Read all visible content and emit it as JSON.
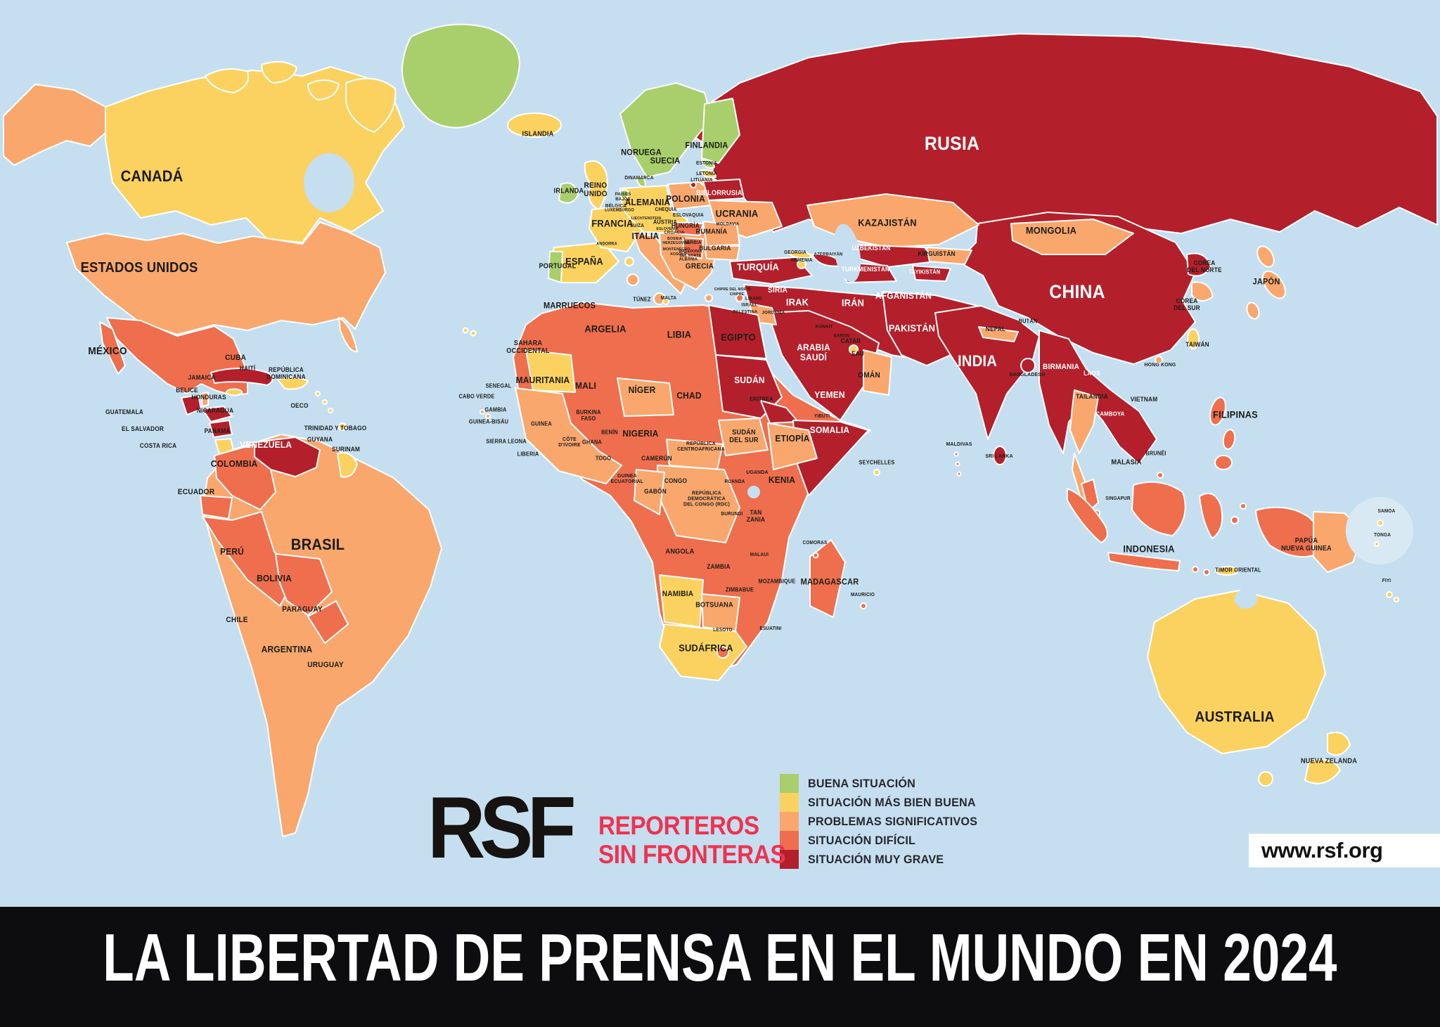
{
  "banner": {
    "title": "LA LIBERTAD DE PRENSA EN EL MUNDO EN 2024"
  },
  "logo": {
    "acronym": "RSF",
    "line1": "REPORTEROS",
    "line2": "SIN FRONTERAS",
    "accent_color": "#ee3350"
  },
  "website": {
    "url": "www.rsf.org"
  },
  "legend": {
    "items": [
      {
        "key": "good",
        "label": "BUENA SITUACIÓN"
      },
      {
        "key": "fair",
        "label": "SITUACIÓN MÁS BIEN BUENA"
      },
      {
        "key": "prob",
        "label": "PROBLEMAS SIGNIFICATIVOS"
      },
      {
        "key": "diff",
        "label": "SITUACIÓN DIFÍCIL"
      },
      {
        "key": "grave",
        "label": "SITUACIÓN MUY GRAVE"
      }
    ]
  },
  "map": {
    "category_colors": {
      "good": "#a8cf6b",
      "fair": "#fbd25f",
      "prob": "#f9a76d",
      "diff": "#ef6e4d",
      "grave": "#b3202b",
      "ocean": "#c5dff0",
      "inset": "#d8e9f4"
    },
    "border_color": "#ffffff",
    "label_colors": {
      "d": "#1c1c1a",
      "w": "#ffffff"
    },
    "labels": [
      [
        "CANADÁ",
        10.55,
        19.49,
        22,
        "d"
      ],
      [
        "ESTADOS UNIDOS",
        9.67,
        29.51,
        20,
        "d"
      ],
      [
        "RUSIA",
        66.1,
        15.9,
        27,
        "w"
      ],
      [
        "CHINA",
        74.8,
        32.28,
        27,
        "w"
      ],
      [
        "INDIA",
        67.87,
        39.83,
        22,
        "w"
      ],
      [
        "BRASIL",
        22.07,
        60.09,
        22,
        "d"
      ],
      [
        "AUSTRALIA",
        85.74,
        79.04,
        21,
        "d"
      ],
      [
        "MÉXICO",
        7.47,
        38.75,
        15,
        "d"
      ],
      [
        "KAZAJISTÁN",
        61.62,
        24.58,
        14,
        "d"
      ],
      [
        "MONGOLIA",
        73.0,
        25.4,
        14,
        "d"
      ],
      [
        "ARGELIA",
        42.04,
        36.29,
        14,
        "d"
      ],
      [
        "LIBIA",
        47.17,
        36.9,
        14,
        "d"
      ],
      [
        "EGIPTO",
        51.27,
        37.21,
        14,
        "d"
      ],
      [
        "SUDÁN",
        52.05,
        41.91,
        13,
        "w"
      ],
      [
        "MALI",
        40.67,
        42.53,
        13,
        "d"
      ],
      [
        "NÍGER",
        44.58,
        42.99,
        13,
        "d"
      ],
      [
        "CHAD",
        47.85,
        43.68,
        13,
        "d"
      ],
      [
        "NIGERIA",
        44.48,
        47.84,
        13,
        "d"
      ],
      [
        "ETIOPÍA",
        55.03,
        48.38,
        13,
        "d"
      ],
      [
        "KENIA",
        54.3,
        52.93,
        13,
        "d"
      ],
      [
        "SOMALIA",
        57.62,
        47.46,
        13,
        "w"
      ],
      [
        "IRÁN",
        59.23,
        33.44,
        14,
        "w"
      ],
      [
        "IRAK",
        55.37,
        33.36,
        14,
        "w"
      ],
      [
        "AFGANISTÁN",
        62.74,
        32.67,
        13,
        "w"
      ],
      [
        "PAKISTÁN",
        63.33,
        36.21,
        14,
        "w"
      ],
      [
        "TURQUÍA",
        52.64,
        29.43,
        14,
        "w"
      ],
      [
        "SIRIA",
        54.0,
        32.05,
        11,
        "w"
      ],
      [
        "UCRANIA",
        51.17,
        23.57,
        14,
        "d"
      ],
      [
        "FRANCIA",
        42.53,
        24.65,
        14,
        "d"
      ],
      [
        "ALEMANIA",
        44.97,
        22.34,
        13,
        "d"
      ],
      [
        "POLONIA",
        47.61,
        21.96,
        13,
        "d"
      ],
      [
        "ESPAÑA",
        40.58,
        28.81,
        14,
        "d"
      ],
      [
        "ITALIA",
        44.82,
        26.04,
        13,
        "d"
      ],
      [
        "FINLANDIA",
        49.07,
        16.02,
        12,
        "d"
      ],
      [
        "NORUEGA",
        44.53,
        16.79,
        12,
        "d"
      ],
      [
        "SUECIA",
        46.19,
        17.72,
        12,
        "d"
      ],
      [
        "COLOMBIA",
        16.26,
        51.16,
        13,
        "d"
      ],
      [
        "PERÚ",
        16.11,
        60.86,
        13,
        "d"
      ],
      [
        "BOLIVIA",
        19.04,
        63.79,
        13,
        "d"
      ],
      [
        "ARGENTINA",
        19.92,
        71.65,
        13,
        "d"
      ],
      [
        "INDONESIA",
        79.79,
        60.55,
        14,
        "d"
      ],
      [
        "FILIPINAS",
        85.79,
        45.76,
        14,
        "d"
      ],
      [
        "MADAGASCAR",
        57.62,
        64.18,
        12,
        "d"
      ],
      [
        "SUDÁFRICA",
        49.02,
        71.49,
        14,
        "d"
      ],
      [
        "BIRMANIA",
        73.68,
        40.45,
        11,
        "w"
      ],
      [
        "VENEZUELA",
        18.46,
        49.08,
        13,
        "w"
      ],
      [
        "MAURITANIA",
        37.7,
        41.91,
        13,
        "d"
      ],
      [
        "MARRUECOS",
        39.55,
        33.74,
        12,
        "d"
      ],
      [
        "JAPÓN",
        87.94,
        31.05,
        12,
        "d"
      ],
      [
        "YEMEN",
        57.62,
        43.53,
        13,
        "w"
      ],
      [
        "ARABIA\nSAUDÍ",
        56.49,
        38.91,
        13,
        "w"
      ],
      [
        "ISLANDIA",
        37.35,
        14.79,
        10,
        "d"
      ],
      [
        "IRLANDA",
        39.5,
        21.11,
        10,
        "d"
      ],
      [
        "REINO\nUNIDO",
        41.36,
        20.96,
        11,
        "d"
      ],
      [
        "PORTUGAL",
        38.72,
        29.35,
        10,
        "d"
      ],
      [
        "CUBA",
        16.36,
        39.45,
        11,
        "d"
      ],
      [
        "JAMAICA",
        14.01,
        41.68,
        9,
        "d"
      ],
      [
        "HAITÍ",
        17.19,
        40.68,
        9,
        "d"
      ],
      [
        "REPÚBLICA\nDOMINICANA",
        19.87,
        41.22,
        9,
        "d"
      ],
      [
        "BELICE",
        12.99,
        43.07,
        9,
        "d"
      ],
      [
        "HONDURAS",
        14.5,
        43.91,
        9,
        "d"
      ],
      [
        "NICARAGUA",
        14.94,
        45.38,
        9,
        "d"
      ],
      [
        "GUATEMALA",
        8.64,
        45.53,
        9,
        "d"
      ],
      [
        "EL SALVADOR",
        9.91,
        47.38,
        9,
        "d"
      ],
      [
        "COSTA RICA",
        10.99,
        49.23,
        9,
        "d"
      ],
      [
        "PANAMÁ",
        15.09,
        47.61,
        9,
        "d"
      ],
      [
        "OECO",
        20.8,
        44.84,
        9,
        "d"
      ],
      [
        "TRINIDAD Y TOBAGO",
        23.29,
        47.3,
        9,
        "d"
      ],
      [
        "GUYANA",
        22.22,
        48.54,
        9,
        "d"
      ],
      [
        "SURINAM",
        24.02,
        49.61,
        9,
        "d"
      ],
      [
        "ECUADOR",
        13.62,
        54.24,
        11,
        "d"
      ],
      [
        "PARAGUAY",
        21.0,
        67.18,
        11,
        "d"
      ],
      [
        "CHILE",
        16.46,
        68.41,
        11,
        "d"
      ],
      [
        "URUGUAY",
        22.61,
        73.34,
        11,
        "d"
      ],
      [
        "DINAMARCA",
        44.38,
        19.72,
        7,
        "d"
      ],
      [
        "ESTONIA",
        49.07,
        18.1,
        7,
        "d"
      ],
      [
        "LETONIA",
        49.07,
        19.26,
        7,
        "d"
      ],
      [
        "LITUANIA",
        48.73,
        19.95,
        7,
        "d"
      ],
      [
        "BIELORRUSIA",
        49.95,
        21.34,
        10,
        "w"
      ],
      [
        "PAÍSES\nBAJOS",
        43.26,
        21.73,
        6.5,
        "d"
      ],
      [
        "BÉLGICA",
        42.77,
        22.8,
        7,
        "d"
      ],
      [
        "LUXEMBURGO",
        43.02,
        23.27,
        6,
        "d"
      ],
      [
        "CHEQUIA",
        46.24,
        23.19,
        7,
        "d"
      ],
      [
        "ESLOVAQUIA",
        47.8,
        23.81,
        7,
        "d"
      ],
      [
        "LIECHTENSTEIN",
        44.87,
        24.11,
        5.5,
        "d"
      ],
      [
        "SUIZA",
        44.24,
        24.96,
        7,
        "d"
      ],
      [
        "AUSTRIA",
        46.19,
        24.58,
        8,
        "d"
      ],
      [
        "HUNGRÍA",
        47.61,
        24.96,
        9,
        "d"
      ],
      [
        "MOLDAVIA",
        50.54,
        24.73,
        6.5,
        "d"
      ],
      [
        "ESLOVENIA",
        46.33,
        25.27,
        5.5,
        "d"
      ],
      [
        "CROACIA",
        46.83,
        25.65,
        6.5,
        "d"
      ],
      [
        "RUMANÍA",
        49.41,
        25.58,
        10,
        "d"
      ],
      [
        "BOSNIA Y\nHERZEGOVINA",
        46.97,
        26.58,
        5.5,
        "d"
      ],
      [
        "SERBIA",
        48.1,
        26.81,
        7,
        "d"
      ],
      [
        "MONTENEGRO",
        46.97,
        27.5,
        5.5,
        "d"
      ],
      [
        "KOSOVO",
        47.12,
        28.04,
        5.5,
        "d"
      ],
      [
        "MACEDONIA\nDEL NORTE",
        47.95,
        27.97,
        5.5,
        "d"
      ],
      [
        "ALBANIA",
        47.8,
        28.66,
        6,
        "d"
      ],
      [
        "BULGARIA",
        49.66,
        27.43,
        9,
        "d"
      ],
      [
        "GRECIA",
        48.58,
        29.35,
        11,
        "d"
      ],
      [
        "ANDORRA",
        42.14,
        26.96,
        6,
        "d"
      ],
      [
        "MALTA",
        46.44,
        32.97,
        7,
        "d"
      ],
      [
        "TÚNEZ",
        44.58,
        33.13,
        8,
        "d"
      ],
      [
        "GEORGIA",
        55.22,
        27.89,
        7,
        "d"
      ],
      [
        "ARMENIA",
        55.66,
        28.74,
        7,
        "d"
      ],
      [
        "AZERBAIYÁN",
        57.52,
        28.04,
        6.5,
        "d"
      ],
      [
        "CHIPRE DEL NORTE",
        50.88,
        31.9,
        5.5,
        "d"
      ],
      [
        "CHIPRE",
        51.17,
        32.51,
        5.5,
        "d"
      ],
      [
        "LÍBANO",
        52.34,
        32.97,
        6.5,
        "d"
      ],
      [
        "ISRAEL",
        52.05,
        33.67,
        6.5,
        "d"
      ],
      [
        "PALESTINA",
        51.76,
        34.44,
        6.5,
        "d"
      ],
      [
        "JORDANIA",
        53.71,
        34.51,
        6.5,
        "d"
      ],
      [
        "KUWAIT",
        57.23,
        36.06,
        6.5,
        "d"
      ],
      [
        "BAREIN",
        58.45,
        37.13,
        6,
        "d"
      ],
      [
        "CATAR",
        59.08,
        37.67,
        9,
        "d"
      ],
      [
        "EAU",
        59.57,
        39.06,
        9,
        "d"
      ],
      [
        "OMÁN",
        60.35,
        41.37,
        11,
        "d"
      ],
      [
        "SAHARA\nOCCIDENTAL",
        36.67,
        38.29,
        10,
        "d"
      ],
      [
        "SENEGAL",
        34.62,
        42.6,
        8,
        "d"
      ],
      [
        "CABO VERDE",
        33.11,
        43.76,
        8,
        "d"
      ],
      [
        "GAMBIA",
        34.42,
        45.3,
        8,
        "d"
      ],
      [
        "GUINEA-BISÁU",
        33.94,
        46.61,
        8,
        "d"
      ],
      [
        "GUINEA",
        37.6,
        46.84,
        8,
        "d"
      ],
      [
        "SIERRA LEONA",
        35.16,
        48.77,
        8,
        "d"
      ],
      [
        "LIBERIA",
        36.67,
        50.15,
        8,
        "d"
      ],
      [
        "CÔTE\nD'IVOIRE",
        39.55,
        48.77,
        7.5,
        "d"
      ],
      [
        "BURKINA\nFASO",
        40.87,
        45.92,
        8,
        "d"
      ],
      [
        "GHANA",
        41.11,
        48.84,
        8,
        "d"
      ],
      [
        "BENÍN",
        42.33,
        47.77,
        8,
        "d"
      ],
      [
        "TOGO",
        41.89,
        50.62,
        8,
        "d"
      ],
      [
        "CAMERÚN",
        45.61,
        50.62,
        9,
        "d"
      ],
      [
        "GUINEA\nECUATORIAL",
        43.55,
        52.77,
        7.5,
        "d"
      ],
      [
        "GABÓN",
        45.51,
        54.24,
        9,
        "d"
      ],
      [
        "CONGO",
        46.92,
        53.08,
        9,
        "d"
      ],
      [
        "REPÚBLICA\nCENTROAFRICANA",
        48.68,
        49.23,
        7.5,
        "d"
      ],
      [
        "REPÚBLICA\nDEMOCRÁTICA\nDEL CONGO (RDC)",
        49.07,
        55.01,
        7.5,
        "d"
      ],
      [
        "RUANDA",
        51.03,
        53.16,
        7,
        "d"
      ],
      [
        "BURUNDI",
        50.83,
        56.78,
        7,
        "d"
      ],
      [
        "UGANDA",
        52.59,
        52.08,
        7.5,
        "d"
      ],
      [
        "TAN\nZANIA",
        52.49,
        57.01,
        9,
        "d"
      ],
      [
        "ERITREA",
        52.88,
        44.07,
        8,
        "d"
      ],
      [
        "YIBUTI",
        57.08,
        45.99,
        7,
        "d"
      ],
      [
        "SUDÁN\nDEL SUR",
        51.66,
        48.15,
        10,
        "d"
      ],
      [
        "SEYCHELLES",
        60.89,
        51.08,
        8,
        "d"
      ],
      [
        "COMORAS",
        56.59,
        59.94,
        7,
        "d"
      ],
      [
        "MAURICIO",
        59.91,
        65.64,
        7,
        "d"
      ],
      [
        "MOZAMBIQUE",
        53.96,
        64.18,
        8,
        "d"
      ],
      [
        "MALAUI",
        52.73,
        61.25,
        7,
        "d"
      ],
      [
        "ZAMBIA",
        49.9,
        62.56,
        9,
        "d"
      ],
      [
        "ANGOLA",
        47.22,
        60.86,
        10,
        "d"
      ],
      [
        "ZIMBABUE",
        51.37,
        65.1,
        8,
        "d"
      ],
      [
        "NAMIBIA",
        47.07,
        65.49,
        11,
        "d"
      ],
      [
        "BOTSUANA",
        49.61,
        66.72,
        10,
        "d"
      ],
      [
        "LESOTO",
        50.2,
        69.57,
        7,
        "d"
      ],
      [
        "ESUATINI",
        53.52,
        69.41,
        7,
        "d"
      ],
      [
        "NEPAL",
        69.14,
        36.36,
        9,
        "d"
      ],
      [
        "BUTÁN",
        71.39,
        35.52,
        8,
        "d"
      ],
      [
        "BANGLADESH",
        71.34,
        41.29,
        7.5,
        "d"
      ],
      [
        "LAOS",
        75.83,
        41.22,
        9,
        "w"
      ],
      [
        "TAILANDIA",
        75.83,
        43.76,
        9,
        "d"
      ],
      [
        "CAMBOYA",
        77.1,
        45.69,
        8.5,
        "w"
      ],
      [
        "VIETNAM",
        79.44,
        44.14,
        9,
        "d"
      ],
      [
        "HONG KONG",
        80.57,
        40.22,
        7.5,
        "d"
      ],
      [
        "TAIWÁN",
        83.15,
        38.06,
        9,
        "d"
      ],
      [
        "COREA\nDEL NORTE",
        83.64,
        29.43,
        9,
        "d"
      ],
      [
        "COREA\nDEL SUR",
        82.42,
        33.67,
        9,
        "d"
      ],
      [
        "MALASIA",
        78.22,
        51.0,
        10,
        "d"
      ],
      [
        "BRUNÉI",
        80.27,
        50.08,
        8,
        "d"
      ],
      [
        "SINGAPUR",
        77.64,
        55.01,
        7,
        "d"
      ],
      [
        "TIMOR ORIENTAL",
        85.99,
        62.94,
        8,
        "d"
      ],
      [
        "PAPÚA\nNUEVA GUINEA",
        90.72,
        60.09,
        10,
        "d"
      ],
      [
        "SAMOA",
        96.29,
        56.47,
        7,
        "d"
      ],
      [
        "TONGA",
        96.0,
        59.09,
        7,
        "d"
      ],
      [
        "FIYI",
        96.29,
        64.1,
        7,
        "d"
      ],
      [
        "NUEVA ZELANDA",
        92.29,
        83.97,
        10,
        "d"
      ],
      [
        "MALDIVAS",
        66.6,
        49.0,
        7.5,
        "d"
      ],
      [
        "SRI LANKA",
        69.38,
        50.31,
        7.5,
        "d"
      ],
      [
        "TURKMENISTÁN",
        60.11,
        29.74,
        9,
        "w"
      ],
      [
        "UZBEKISTÁN",
        60.5,
        27.43,
        9,
        "w"
      ],
      [
        "KIRGUISTÁN",
        65.04,
        28.04,
        9,
        "d"
      ],
      [
        "TAYIKISTÁN",
        64.21,
        30.05,
        8,
        "w"
      ]
    ]
  }
}
